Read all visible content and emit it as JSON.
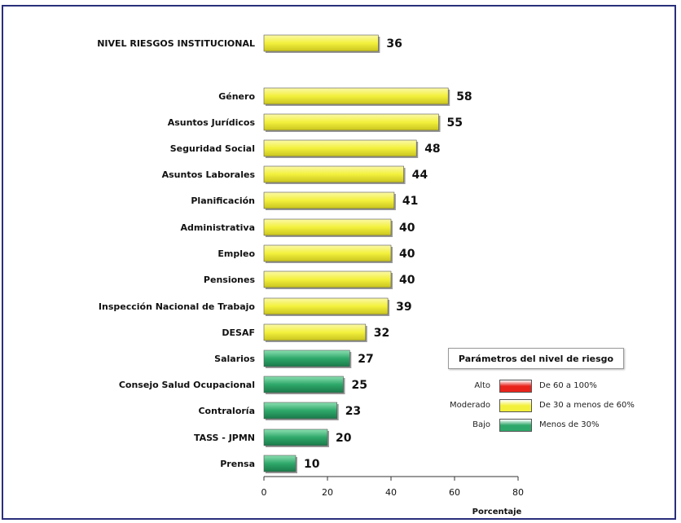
{
  "chart_data": {
    "type": "bar",
    "orientation": "horizontal",
    "title": "",
    "xlabel": "Porcentaje",
    "ylabel": "",
    "xlim": [
      0,
      80
    ],
    "xticks": [
      "0",
      "20",
      "40",
      "60",
      "80"
    ],
    "grid": false,
    "categories": [
      "NIVEL RIESGOS INSTITUCIONAL",
      "Género",
      "Asuntos Jurídicos",
      "Seguridad Social",
      "Asuntos Laborales",
      "Planificación",
      "Administrativa",
      "Empleo",
      "Pensiones",
      "Inspección Nacional de Trabajo",
      "DESAF",
      "Salarios",
      "Consejo Salud Ocupacional",
      "Contraloría",
      "TASS - JPMN",
      "Prensa"
    ],
    "values": [
      36,
      58,
      55,
      48,
      44,
      41,
      40,
      40,
      40,
      39,
      32,
      27,
      25,
      23,
      20,
      10
    ],
    "value_labels": [
      "36",
      "58",
      "55",
      "48",
      "44",
      "41",
      "40",
      "40",
      "40",
      "39",
      "32",
      "27",
      "25",
      "23",
      "20",
      "10"
    ],
    "levels": [
      {
        "name": "Alto",
        "range": "De 60 a 100%",
        "color": "#e8231c",
        "min": 60
      },
      {
        "name": "Moderado",
        "range": "De 30 a menos de 60%",
        "color": "#f3f03c",
        "min": 30
      },
      {
        "name": "Bajo",
        "range": "Menos de 30%",
        "color": "#2ea86a",
        "min": 0
      }
    ],
    "legend": {
      "title": "Parámetros del nivel de riesgo",
      "placement": "bottom-right"
    }
  }
}
